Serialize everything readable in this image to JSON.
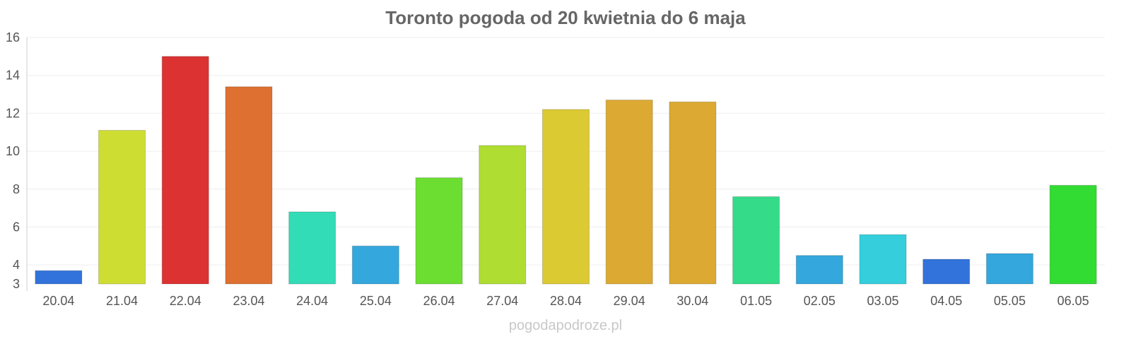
{
  "watermark": "pogodapodroze.pl",
  "chart_data": {
    "type": "bar",
    "title": "Toronto pogoda od 20 kwietnia do 6 maja",
    "xlabel": "",
    "ylabel": "",
    "ylim": [
      3,
      16
    ],
    "yticks": [
      3,
      4,
      6,
      8,
      10,
      12,
      14,
      16
    ],
    "grid": true,
    "categories": [
      "20.04",
      "21.04",
      "22.04",
      "23.04",
      "24.04",
      "25.04",
      "26.04",
      "27.04",
      "28.04",
      "29.04",
      "30.04",
      "01.05",
      "02.05",
      "03.05",
      "04.05",
      "05.05",
      "06.05"
    ],
    "values": [
      3.7,
      11.1,
      15.0,
      13.4,
      6.8,
      5.0,
      8.6,
      10.3,
      12.2,
      12.7,
      12.6,
      7.6,
      4.5,
      5.6,
      4.3,
      4.6,
      8.2
    ],
    "colors": [
      "#3272db",
      "#cedd32",
      "#dc3232",
      "#de7032",
      "#32dcb7",
      "#34a7dc",
      "#6cde32",
      "#b0dd32",
      "#dcca32",
      "#dcaa32",
      "#dcaa32",
      "#34db88",
      "#34a7dc",
      "#34cedc",
      "#3272db",
      "#34a7dc",
      "#32dc32"
    ]
  }
}
